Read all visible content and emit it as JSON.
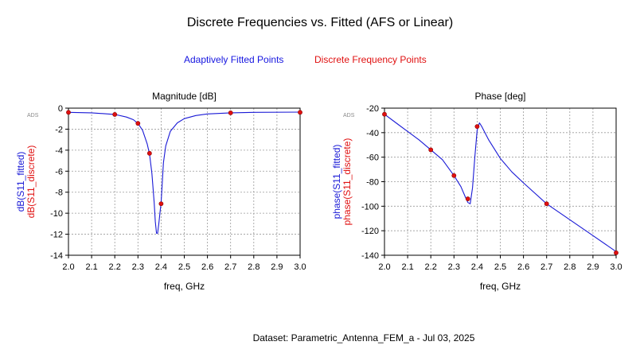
{
  "header": {
    "title": "Discrete Frequencies vs. Fitted (AFS or Linear)",
    "legend_fitted": "Adaptively Fitted Points",
    "legend_discrete": "Discrete Frequency Points"
  },
  "footer": {
    "dataset": "Dataset: Parametric_Antenna_FEM_a - Jul 03, 2025"
  },
  "colors": {
    "fitted": "#1a1ad6",
    "discrete": "#e01010",
    "marker_edge": "#8b0000"
  },
  "chart_data": [
    {
      "type": "line",
      "title": "Magnitude [dB]",
      "xlabel": "freq, GHz",
      "ylabel_fitted": "dB(S11_fitted)",
      "ylabel_discrete": "dB(S11_discrete)",
      "watermark": "ADS",
      "xlim": [
        2.0,
        3.0
      ],
      "ylim": [
        -14,
        0
      ],
      "xticks": [
        "2.0",
        "2.1",
        "2.2",
        "2.3",
        "2.4",
        "2.5",
        "2.6",
        "2.7",
        "2.8",
        "2.9",
        "3.0"
      ],
      "yticks": [
        "0",
        "-2",
        "-4",
        "-6",
        "-8",
        "-10",
        "-12",
        "-14"
      ],
      "grid": true,
      "series": [
        {
          "name": "Adaptively Fitted Points",
          "x": [
            2.0,
            2.1,
            2.2,
            2.25,
            2.28,
            2.3,
            2.32,
            2.34,
            2.35,
            2.36,
            2.37,
            2.375,
            2.38,
            2.385,
            2.39,
            2.395,
            2.4,
            2.41,
            2.42,
            2.44,
            2.47,
            2.5,
            2.55,
            2.6,
            2.7,
            2.8,
            3.0
          ],
          "y": [
            -0.4,
            -0.45,
            -0.6,
            -0.85,
            -1.1,
            -1.45,
            -2.1,
            -3.4,
            -4.4,
            -6.2,
            -9.0,
            -10.8,
            -11.9,
            -11.9,
            -11.0,
            -10.0,
            -9.0,
            -5.2,
            -3.6,
            -2.2,
            -1.4,
            -1.0,
            -0.7,
            -0.55,
            -0.45,
            -0.4,
            -0.38
          ]
        },
        {
          "name": "Discrete Frequency Points",
          "x": [
            2.0,
            2.2,
            2.3,
            2.35,
            2.4,
            2.7,
            3.0
          ],
          "y": [
            -0.4,
            -0.6,
            -1.45,
            -4.3,
            -9.1,
            -0.45,
            -0.4
          ]
        }
      ]
    },
    {
      "type": "line",
      "title": "Phase [deg]",
      "xlabel": "freq, GHz",
      "ylabel_fitted": "phase(S11_fitted)",
      "ylabel_discrete": "phase(S11_discrete)",
      "watermark": "ADS",
      "xlim": [
        2.0,
        3.0
      ],
      "ylim": [
        -140,
        -20
      ],
      "xticks": [
        "2.0",
        "2.1",
        "2.2",
        "2.3",
        "2.4",
        "2.5",
        "2.6",
        "2.7",
        "2.8",
        "2.9",
        "3.0"
      ],
      "yticks": [
        "-20",
        "-40",
        "-60",
        "-80",
        "-100",
        "-120",
        "-140"
      ],
      "grid": true,
      "series": [
        {
          "name": "Adaptively Fitted Points",
          "x": [
            2.0,
            2.05,
            2.1,
            2.15,
            2.2,
            2.25,
            2.3,
            2.33,
            2.35,
            2.36,
            2.37,
            2.38,
            2.39,
            2.4,
            2.41,
            2.42,
            2.45,
            2.5,
            2.55,
            2.6,
            2.7,
            2.8,
            2.9,
            3.0
          ],
          "y": [
            -25,
            -32,
            -39,
            -46,
            -54,
            -62,
            -75,
            -84,
            -93,
            -97,
            -98,
            -85,
            -60,
            -38,
            -32,
            -35,
            -46,
            -61,
            -72,
            -81,
            -98,
            -111,
            -124,
            -137
          ]
        },
        {
          "name": "Discrete Frequency Points",
          "x": [
            2.0,
            2.2,
            2.3,
            2.36,
            2.4,
            2.7,
            3.0
          ],
          "y": [
            -25,
            -54,
            -75,
            -94,
            -35,
            -98,
            -138
          ]
        }
      ]
    }
  ]
}
